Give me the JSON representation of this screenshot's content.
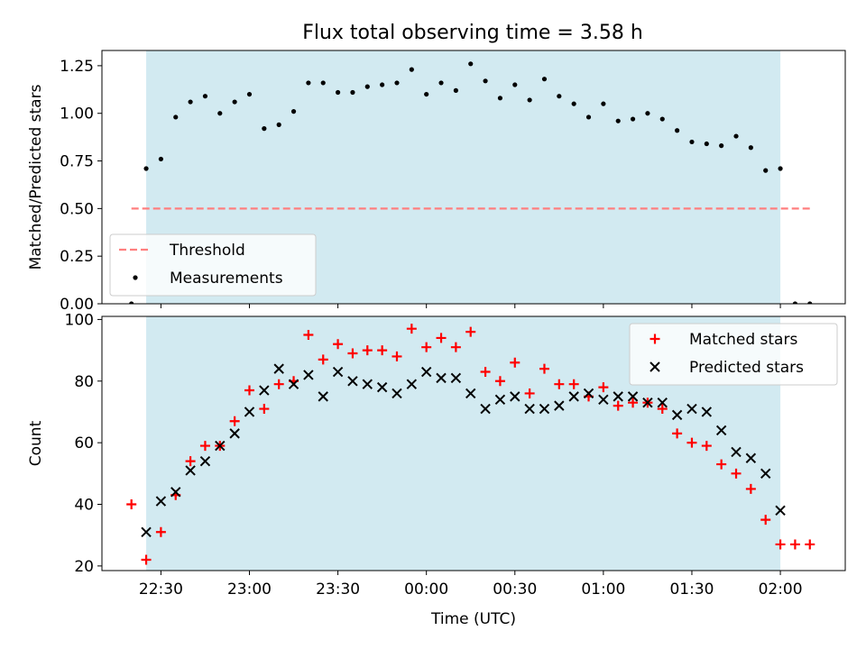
{
  "title": "Flux total observing time = 3.58 h",
  "colors": {
    "observing_window": "#add8e6",
    "threshold": "#ff7f7f",
    "measurements": "#000000",
    "matched": "#ff0000",
    "predicted": "#000000"
  },
  "chart_data": [
    {
      "type": "scatter",
      "ylabel": "Matched/Predicted stars",
      "ylim": [
        0,
        1.33
      ],
      "yticks": [
        0.0,
        0.25,
        0.5,
        0.75,
        1.0,
        1.25
      ],
      "ytick_labels": [
        "0.00",
        "0.25",
        "0.50",
        "0.75",
        "1.00",
        "1.25"
      ],
      "xlim": [
        "22:10",
        "02:22"
      ],
      "observing_window": [
        "22:25",
        "02:00"
      ],
      "legend": {
        "position": "lower left",
        "entries": [
          {
            "label": "Threshold",
            "marker": "dashed-line"
          },
          {
            "label": "Measurements",
            "marker": "dot"
          }
        ]
      },
      "series": [
        {
          "name": "Threshold",
          "kind": "dashed-line",
          "x": [
            "22:20",
            "02:10"
          ],
          "y": [
            0.5,
            0.5
          ]
        },
        {
          "name": "Measurements",
          "kind": "dots",
          "x": [
            "22:20",
            "22:25",
            "22:30",
            "22:35",
            "22:40",
            "22:45",
            "22:50",
            "22:55",
            "23:00",
            "23:05",
            "23:10",
            "23:15",
            "23:20",
            "23:25",
            "23:30",
            "23:35",
            "23:40",
            "23:45",
            "23:50",
            "23:55",
            "00:00",
            "00:05",
            "00:10",
            "00:15",
            "00:20",
            "00:25",
            "00:30",
            "00:35",
            "00:40",
            "00:45",
            "00:50",
            "00:55",
            "01:00",
            "01:05",
            "01:10",
            "01:15",
            "01:20",
            "01:25",
            "01:30",
            "01:35",
            "01:40",
            "01:45",
            "01:50",
            "01:55",
            "02:00",
            "02:05",
            "02:10"
          ],
          "y": [
            0.0,
            0.71,
            0.76,
            0.98,
            1.06,
            1.09,
            1.0,
            1.06,
            1.1,
            0.92,
            0.94,
            1.01,
            1.16,
            1.16,
            1.11,
            1.11,
            1.14,
            1.15,
            1.16,
            1.23,
            1.1,
            1.16,
            1.12,
            1.26,
            1.17,
            1.08,
            1.15,
            1.07,
            1.18,
            1.09,
            1.05,
            0.98,
            1.05,
            0.96,
            0.97,
            1.0,
            0.97,
            0.91,
            0.85,
            0.84,
            0.83,
            0.88,
            0.82,
            0.7,
            0.71,
            0.0,
            0.0
          ]
        }
      ]
    },
    {
      "type": "scatter",
      "xlabel": "Time (UTC)",
      "ylabel": "Count",
      "ylim": [
        18.5,
        101
      ],
      "yticks": [
        20,
        40,
        60,
        80,
        100
      ],
      "ytick_labels": [
        "20",
        "40",
        "60",
        "80",
        "100"
      ],
      "xlim": [
        "22:10",
        "02:22"
      ],
      "xticks": [
        "22:30",
        "23:00",
        "23:30",
        "00:00",
        "00:30",
        "01:00",
        "01:30",
        "02:00"
      ],
      "xtick_labels": [
        "22:30",
        "23:00",
        "23:30",
        "00:00",
        "00:30",
        "01:00",
        "01:30",
        "02:00"
      ],
      "observing_window": [
        "22:25",
        "02:00"
      ],
      "legend": {
        "position": "upper right",
        "entries": [
          {
            "label": "Matched stars",
            "marker": "plus"
          },
          {
            "label": "Predicted stars",
            "marker": "x"
          }
        ]
      },
      "series": [
        {
          "name": "Matched stars",
          "marker": "plus",
          "x": [
            "22:20",
            "22:25",
            "22:30",
            "22:35",
            "22:40",
            "22:45",
            "22:50",
            "22:55",
            "23:00",
            "23:05",
            "23:10",
            "23:15",
            "23:20",
            "23:25",
            "23:30",
            "23:35",
            "23:40",
            "23:45",
            "23:50",
            "23:55",
            "00:00",
            "00:05",
            "00:10",
            "00:15",
            "00:20",
            "00:25",
            "00:30",
            "00:35",
            "00:40",
            "00:45",
            "00:50",
            "00:55",
            "01:00",
            "01:05",
            "01:10",
            "01:15",
            "01:20",
            "01:25",
            "01:30",
            "01:35",
            "01:40",
            "01:45",
            "01:50",
            "01:55",
            "02:00",
            "02:05",
            "02:10"
          ],
          "y": [
            40,
            22,
            31,
            43,
            54,
            59,
            59,
            67,
            77,
            71,
            79,
            80,
            95,
            87,
            92,
            89,
            90,
            90,
            88,
            97,
            91,
            94,
            91,
            96,
            83,
            80,
            86,
            76,
            84,
            79,
            79,
            75,
            78,
            72,
            73,
            73,
            71,
            63,
            60,
            59,
            53,
            50,
            45,
            35,
            27,
            27,
            27
          ]
        },
        {
          "name": "Predicted stars",
          "marker": "x",
          "x": [
            "22:25",
            "22:30",
            "22:35",
            "22:40",
            "22:45",
            "22:50",
            "22:55",
            "23:00",
            "23:05",
            "23:10",
            "23:15",
            "23:20",
            "23:25",
            "23:30",
            "23:35",
            "23:40",
            "23:45",
            "23:50",
            "23:55",
            "00:00",
            "00:05",
            "00:10",
            "00:15",
            "00:20",
            "00:25",
            "00:30",
            "00:35",
            "00:40",
            "00:45",
            "00:50",
            "00:55",
            "01:00",
            "01:05",
            "01:10",
            "01:15",
            "01:20",
            "01:25",
            "01:30",
            "01:35",
            "01:40",
            "01:45",
            "01:50",
            "01:55",
            "02:00"
          ],
          "y": [
            31,
            41,
            44,
            51,
            54,
            59,
            63,
            70,
            77,
            84,
            79,
            82,
            75,
            83,
            80,
            79,
            78,
            76,
            79,
            83,
            81,
            81,
            76,
            71,
            74,
            75,
            71,
            71,
            72,
            75,
            76,
            74,
            75,
            75,
            73,
            73,
            69,
            71,
            70,
            64,
            57,
            55,
            50,
            38
          ]
        }
      ]
    }
  ]
}
